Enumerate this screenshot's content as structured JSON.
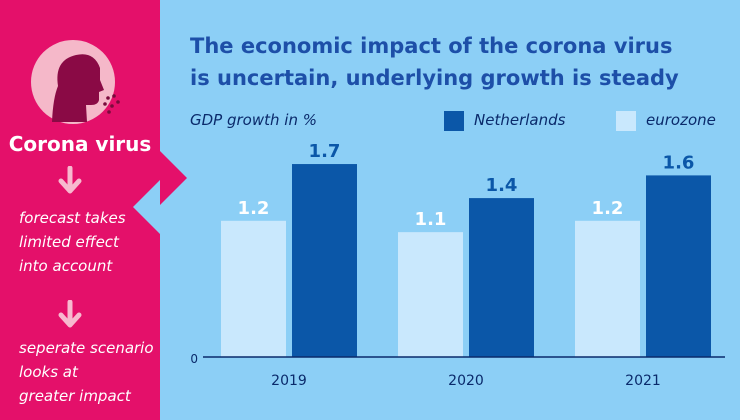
{
  "sidebar": {
    "title": "Corona virus",
    "step1": [
      "forecast takes",
      "limited effect",
      "into account"
    ],
    "step2": [
      "seperate scenario",
      "looks at",
      "greater impact"
    ]
  },
  "header": {
    "title_lines": [
      "The economic impact of the corona virus",
      "is uncertain, underlying growth is steady"
    ]
  },
  "colors": {
    "pink": "#e4106a",
    "background": "#8ccff6",
    "netherlands": "#0b57a8",
    "eurozone": "#c9e8fd",
    "title": "#1d4fa8"
  },
  "chart_data": {
    "type": "bar",
    "title": "The economic impact of the corona virus is uncertain, underlying growth is steady",
    "ylabel": "GDP growth in %",
    "xlabel": "",
    "categories": [
      "2019",
      "2020",
      "2021"
    ],
    "series": [
      {
        "name": "eurozone",
        "values": [
          1.2,
          1.1,
          1.2
        ],
        "labels": [
          "1.2",
          "1.1",
          "1.2"
        ]
      },
      {
        "name": "Netherlands",
        "values": [
          1.7,
          1.4,
          1.6
        ],
        "labels": [
          "1.7",
          "1.4",
          "1.6"
        ]
      }
    ],
    "legend": [
      "Netherlands",
      "eurozone"
    ],
    "ylim": [
      0,
      2.0
    ],
    "yticks": [
      "0"
    ],
    "grid": false,
    "legend_position": "top"
  }
}
